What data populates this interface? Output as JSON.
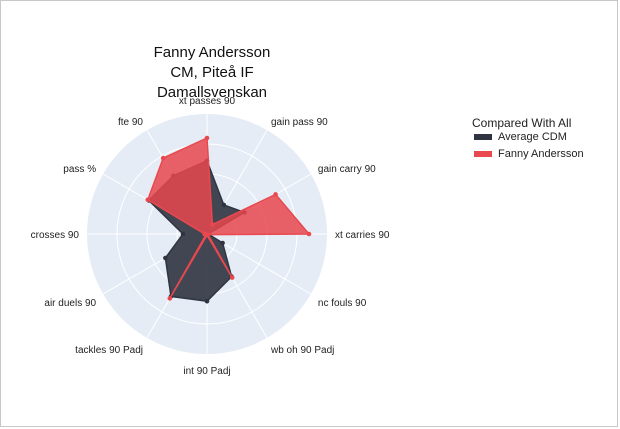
{
  "title_lines": [
    "Fanny  Andersson",
    "CM, Piteå IF",
    "Damallsvenskan"
  ],
  "chart_data": {
    "type": "radar",
    "title": "Fanny  Andersson CM, Piteå IF Damallsvenskan",
    "axes": [
      "xt passes 90",
      "gain pass 90",
      "gain carry 90",
      "xt carries 90",
      "nc fouls 90",
      "wb oh 90 Padj",
      "int 90 Padj",
      "tackles 90 Padj",
      "air duels 90",
      "crosses 90",
      "pass %",
      "fte 90"
    ],
    "range": [
      0,
      1
    ],
    "series": [
      {
        "name": "Average CDM",
        "color": "#2f3440",
        "values": [
          0.61,
          0.28,
          0.36,
          0.01,
          0.15,
          0.41,
          0.56,
          0.6,
          0.4,
          0.2,
          0.56,
          0.56
        ]
      },
      {
        "name": "Fanny  Andersson",
        "color": "#e8484e",
        "values": [
          0.8,
          0.09,
          0.66,
          0.85,
          0.01,
          0.42,
          0.01,
          0.62,
          0.01,
          0.02,
          0.57,
          0.73
        ]
      }
    ],
    "legend": {
      "title": "Compared With All",
      "position": "right"
    },
    "grid": true
  }
}
